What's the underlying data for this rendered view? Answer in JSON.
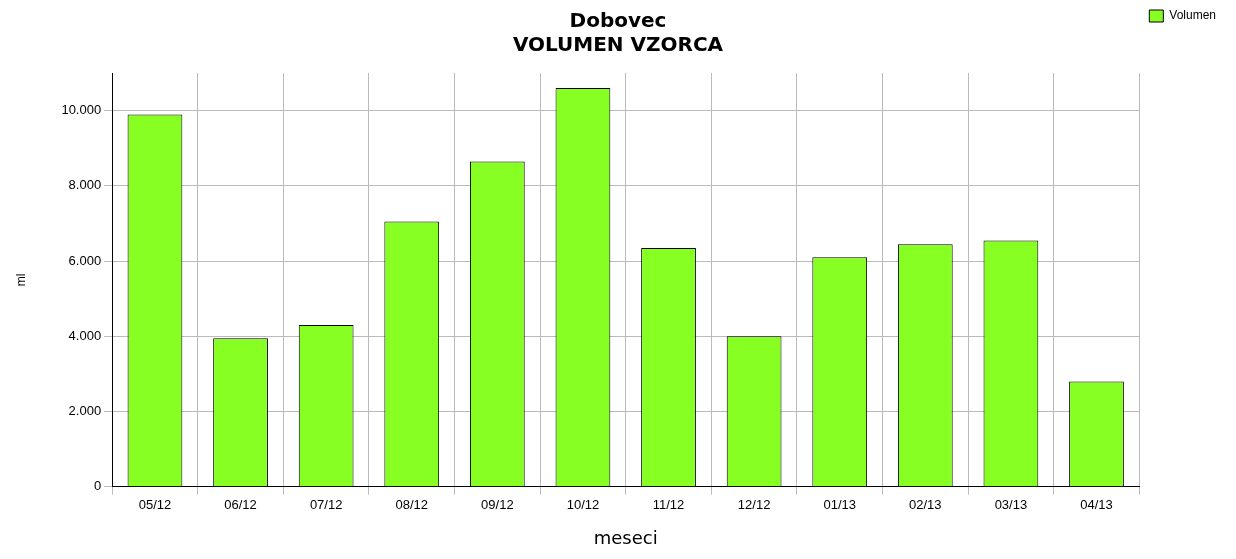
{
  "chart_data": {
    "type": "bar",
    "title": "Dobovec",
    "subtitle": "VOLUMEN VZORCA",
    "xlabel": "meseci",
    "ylabel": "ml",
    "categories": [
      "05/12",
      "06/12",
      "07/12",
      "08/12",
      "09/12",
      "10/12",
      "11/12",
      "12/12",
      "01/13",
      "02/13",
      "03/13",
      "04/13"
    ],
    "series": [
      {
        "name": "Volumen",
        "color": "#88ff22",
        "values": [
          9900,
          3950,
          4300,
          7050,
          8650,
          10600,
          6350,
          4000,
          6100,
          6450,
          6550,
          2800
        ]
      }
    ],
    "ylim": [
      0,
      11000
    ],
    "yticks": [
      {
        "value": 0,
        "label": "0"
      },
      {
        "value": 2000,
        "label": "2.000"
      },
      {
        "value": 4000,
        "label": "4.000"
      },
      {
        "value": 6000,
        "label": "6.000"
      },
      {
        "value": 8000,
        "label": "8.000"
      },
      {
        "value": 10000,
        "label": "10.000"
      }
    ],
    "grid": true,
    "legend": "top right"
  }
}
